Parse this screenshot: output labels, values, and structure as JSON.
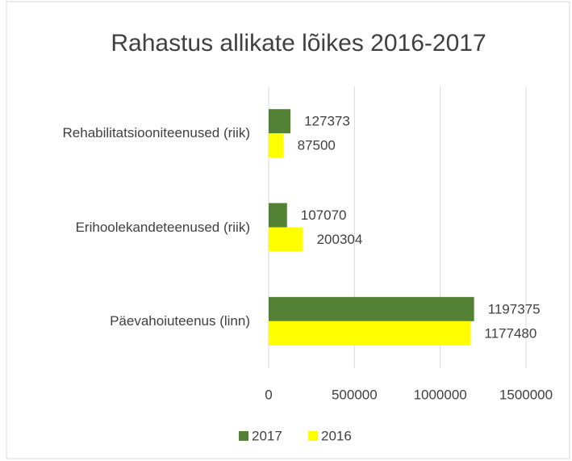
{
  "chart_data": {
    "type": "bar",
    "orientation": "horizontal",
    "title": "Rahastus allikate lõikes 2016-2017",
    "categories": [
      "Rehabilitatsiooniteenused (riik)",
      "Erihoolekandeteenused (riik)",
      "Päevahoiuteenus (linn)"
    ],
    "series": [
      {
        "name": "2017",
        "color": "#548235",
        "values": [
          127373,
          107070,
          1197375
        ]
      },
      {
        "name": "2016",
        "color": "#ffff00",
        "values": [
          87500,
          200304,
          1177480
        ]
      }
    ],
    "xlim": [
      0,
      1500000
    ],
    "xticks": [
      0,
      500000,
      1000000,
      1500000
    ],
    "grid": true,
    "legend": "bottom"
  }
}
